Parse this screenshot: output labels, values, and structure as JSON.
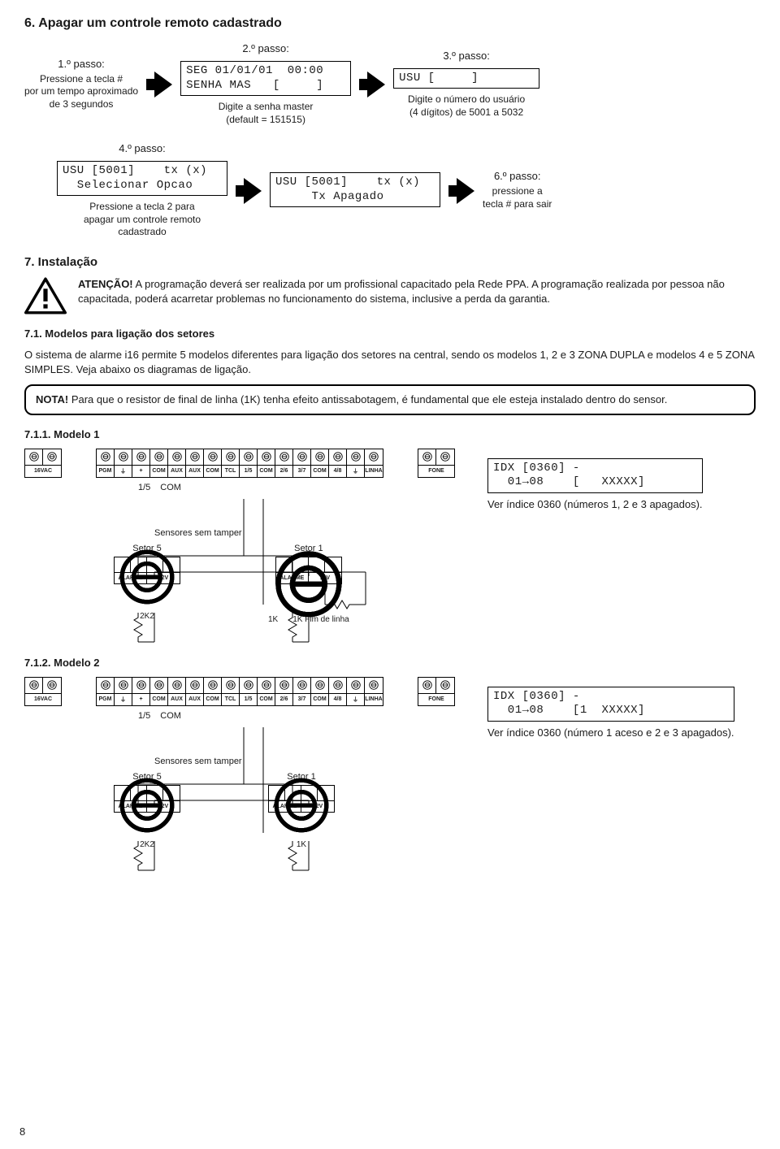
{
  "page_number": "8",
  "colors": {
    "text": "#1a1a1a",
    "border": "#000000",
    "bg": "#ffffff"
  },
  "section6": {
    "title": "6. Apagar um controle remoto cadastrado",
    "step1": {
      "title": "1.º passo:",
      "desc_l1": "Pressione a tecla #",
      "desc_l2": "por um tempo aproximado",
      "desc_l3": "de 3 segundos"
    },
    "step2": {
      "title": "2.º passo:",
      "lcd": "SEG 01/01/01  00:00\nSENHA MAS   [     ]",
      "desc_l1": "Digite a senha master",
      "desc_l2": "(default = 151515)"
    },
    "step3": {
      "title": "3.º passo:",
      "lcd": "USU [     ]",
      "desc_l1": "Digite o número do usuário",
      "desc_l2": "(4 dígitos) de 5001 a 5032"
    },
    "step4": {
      "title": "4.º passo:",
      "lcd": "USU [5001]    tx (x)\n  Selecionar Opcao",
      "desc_l1": "Pressione a tecla 2 para",
      "desc_l2": "apagar um controle remoto",
      "desc_l3": "cadastrado"
    },
    "step5": {
      "lcd": "USU [5001]    tx (x)\n     Tx Apagado"
    },
    "step6": {
      "title": "6.º passo:",
      "desc_l1": "pressione a",
      "desc_l2": "tecla # para sair"
    }
  },
  "section7": {
    "title": "7. Instalação",
    "atencao_label": "ATENÇÃO!",
    "atencao_text": " A programação deverá ser realizada por um profissional capacitado pela Rede PPA. A programação realizada por pessoa não capacitada, poderá acarretar problemas no funcionamento do sistema, inclusive a perda da garantia.",
    "s71_title": "7.1. Modelos para ligação dos setores",
    "s71_text": "O sistema de alarme i16 permite 5 modelos diferentes para ligação dos setores na central, sendo os modelos 1, 2 e 3 ZONA DUPLA e modelos 4 e 5 ZONA SIMPLES. Veja abaixo os diagramas de ligação.",
    "note_label": "NOTA!",
    "note_text": " Para que o resistor de final de linha (1K) tenha efeito antissabotagem, é fundamental que ele esteja instalado dentro do sensor.",
    "model1_title": "7.1.1. Modelo 1",
    "model2_title": "7.1.2. Modelo 2",
    "terminals": {
      "block_16vac": {
        "cols": 2,
        "label": "16VAC"
      },
      "block_main": {
        "labels": [
          "PGM",
          "⏚",
          "+",
          "COM",
          "AUX",
          "AUX",
          "COM",
          "TCL",
          "1/5",
          "COM",
          "2/6",
          "3/7",
          "COM",
          "4/8",
          "⏚",
          "LINHA"
        ]
      },
      "block_fone": {
        "cols": 2,
        "label": "FONE"
      },
      "below_labels": [
        "1/5",
        "COM"
      ]
    },
    "sensors_header": "Sensores sem tamper",
    "sensor5": "Setor 5",
    "sensor1": "Setor 1",
    "sensor_labels": [
      "ALARME",
      "12V"
    ],
    "res_2k2": "2K2",
    "res_1k": "1K",
    "res_1k_eol": "1K  Fim de linha",
    "model1_lcd": "IDX [0360] -\n  01→08    [   XXXXX]",
    "model1_caption": "Ver índice 0360 (números 1, 2 e 3 apagados).",
    "model2_lcd": "IDX [0360] -\n  01→08    [1  XXXXX]",
    "model2_caption": "Ver índice 0360 (número 1 aceso e 2 e 3 apagados)."
  }
}
